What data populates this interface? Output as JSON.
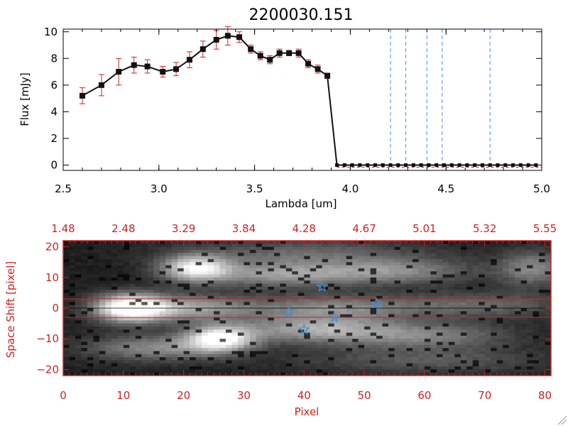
{
  "colors": {
    "top_axis": "#000000",
    "bottom_axis": "#cc2222",
    "error_bar": "#cc2222",
    "marker": "#111111",
    "dashed_line": "#3a8fd9",
    "star": "#3a8fd9",
    "aperture_line": "#cc2222"
  },
  "chart_data": [
    {
      "type": "line",
      "title": "2200030.151",
      "xlabel": "Lambda [um]",
      "ylabel": "Flux [mJy]",
      "xlim": [
        2.5,
        5.0
      ],
      "ylim": [
        -0.4,
        10.2
      ],
      "xticks": [
        2.5,
        3.0,
        3.5,
        4.0,
        4.5,
        5.0
      ],
      "xtick_labels": [
        "2.5",
        "3.0",
        "3.5",
        "4.0",
        "4.5",
        "5.0"
      ],
      "yticks": [
        0,
        2,
        4,
        6,
        8,
        10
      ],
      "ytick_labels": [
        "0",
        "2",
        "4",
        "6",
        "8",
        "10"
      ],
      "series": [
        {
          "name": "spectrum",
          "x": [
            2.6,
            2.7,
            2.79,
            2.87,
            2.94,
            3.02,
            3.09,
            3.16,
            3.23,
            3.3,
            3.36,
            3.42,
            3.48,
            3.53,
            3.58,
            3.63,
            3.68,
            3.73,
            3.78,
            3.83,
            3.88,
            3.93,
            3.97,
            4.01,
            4.05,
            4.09,
            4.13,
            4.17,
            4.21,
            4.25,
            4.29,
            4.33,
            4.37,
            4.41,
            4.45,
            4.49,
            4.53,
            4.57,
            4.61,
            4.65,
            4.69,
            4.73,
            4.77,
            4.81,
            4.85,
            4.89,
            4.93,
            4.97
          ],
          "y": [
            5.2,
            6.0,
            7.0,
            7.5,
            7.4,
            7.0,
            7.2,
            7.9,
            8.7,
            9.4,
            9.7,
            9.6,
            8.7,
            8.2,
            7.9,
            8.4,
            8.4,
            8.4,
            7.6,
            7.2,
            6.7,
            0.0,
            0.0,
            0.0,
            0.0,
            0.0,
            0.0,
            0.0,
            0.0,
            0.0,
            0.0,
            0.0,
            0.0,
            0.0,
            0.0,
            0.0,
            0.0,
            0.0,
            0.0,
            0.0,
            0.0,
            0.0,
            0.0,
            0.0,
            0.0,
            0.0,
            0.0,
            0.0
          ],
          "yerr": [
            0.6,
            0.8,
            1.0,
            0.6,
            0.5,
            0.4,
            0.5,
            0.6,
            0.6,
            0.7,
            0.7,
            0.4,
            0.3,
            0.3,
            0.3,
            0.3,
            0.2,
            0.3,
            0.3,
            0.3,
            0.2,
            0,
            0,
            0,
            0,
            0,
            0,
            0,
            0,
            0,
            0,
            0,
            0,
            0,
            0,
            0,
            0,
            0,
            0,
            0,
            0,
            0,
            0,
            0,
            0,
            0,
            0,
            0
          ]
        }
      ],
      "vertical_dashed_lines": [
        4.21,
        4.29,
        4.4,
        4.48,
        4.73
      ],
      "zero_line_from": 3.93
    },
    {
      "type": "heatmap",
      "xlabel": "Pixel",
      "ylabel": "Space Shift [pixel]",
      "xlim": [
        0,
        81
      ],
      "ylim": [
        -22,
        22
      ],
      "xticks": [
        0,
        10,
        20,
        30,
        40,
        50,
        60,
        70,
        80
      ],
      "xtick_labels": [
        "0",
        "10",
        "20",
        "30",
        "40",
        "50",
        "60",
        "70",
        "80"
      ],
      "yticks": [
        -20,
        -10,
        0,
        10,
        20
      ],
      "ytick_labels": [
        "−20",
        "−10",
        "0",
        "10",
        "20"
      ],
      "top_axis_ticks": [
        0,
        10,
        20,
        30,
        40,
        50,
        60,
        70,
        80
      ],
      "top_axis_labels": [
        "1.48",
        "2.48",
        "3.29",
        "3.84",
        "4.28",
        "4.67",
        "5.01",
        "5.32",
        "5.55"
      ],
      "aperture_lines": [
        3,
        -3
      ],
      "center_line": 0,
      "blobs": [
        {
          "x": 11,
          "y": 0,
          "peak": 1.0,
          "sx": 4,
          "sy": 3.2
        },
        {
          "x": 20,
          "y": 0,
          "peak": 0.55,
          "sx": 8,
          "sy": 3
        },
        {
          "x": 45,
          "y": 0,
          "peak": 0.45,
          "sx": 10,
          "sy": 3
        },
        {
          "x": 70,
          "y": 1,
          "peak": 0.3,
          "sx": 10,
          "sy": 3
        },
        {
          "x": 22,
          "y": 13,
          "peak": 0.85,
          "sx": 4,
          "sy": 3
        },
        {
          "x": 36,
          "y": 11,
          "peak": 0.5,
          "sx": 9,
          "sy": 3
        },
        {
          "x": 55,
          "y": 12,
          "peak": 0.45,
          "sx": 9,
          "sy": 3
        },
        {
          "x": 78,
          "y": 13,
          "peak": 0.45,
          "sx": 4,
          "sy": 4
        },
        {
          "x": 26,
          "y": -10,
          "peak": 0.95,
          "sx": 4,
          "sy": 3
        },
        {
          "x": 15,
          "y": -13,
          "peak": 0.45,
          "sx": 8,
          "sy": 3
        },
        {
          "x": 42,
          "y": -7,
          "peak": 0.55,
          "sx": 9,
          "sy": 3
        },
        {
          "x": 60,
          "y": -9,
          "peak": 0.4,
          "sx": 10,
          "sy": 3
        },
        {
          "x": 40,
          "y": 18,
          "peak": 0.3,
          "sx": 14,
          "sy": 3
        },
        {
          "x": 60,
          "y": -17,
          "peak": 0.25,
          "sx": 15,
          "sy": 3
        }
      ],
      "stars": [
        {
          "x": 43,
          "y": 7
        },
        {
          "x": 37.5,
          "y": -1
        },
        {
          "x": 40,
          "y": -7
        },
        {
          "x": 45,
          "y": -3
        },
        {
          "x": 52,
          "y": 1.5
        }
      ]
    }
  ]
}
